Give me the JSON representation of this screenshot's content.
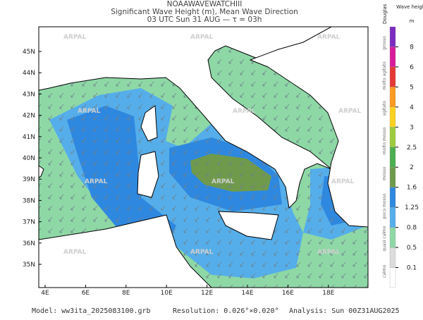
{
  "header": {
    "title": "NOAAWAVEWATCHIII",
    "subtitle": "Significant Wave Height (m), Mean Wave Direction",
    "time": "03 UTC Sun 31 AUG  —  τ = 03h"
  },
  "map": {
    "lat_labels": [
      "35N",
      "36N",
      "37N",
      "38N",
      "39N",
      "40N",
      "41N",
      "42N",
      "43N",
      "44N",
      "45N"
    ],
    "lon_labels": [
      "4E",
      "6E",
      "8E",
      "10E",
      "12E",
      "14E",
      "16E",
      "18E"
    ],
    "watermark": "ARPAL"
  },
  "colorbar": {
    "title": "Wave height",
    "unit": "m",
    "scale_title": "Douglas",
    "labels": [
      "0.1",
      "0.5",
      "0.8",
      "1.25",
      "1.6",
      "2",
      "2.5",
      "3",
      "4",
      "5",
      "6",
      "8"
    ],
    "colors": [
      "#ffffff",
      "#dcdcdc",
      "#8ed8a6",
      "#55aeea",
      "#2f88df",
      "#6f9a4c",
      "#4caf50",
      "#9ccc3c",
      "#ffd21f",
      "#ff9b1f",
      "#e53935",
      "#d81b9a",
      "#7b2cbf"
    ],
    "douglas": [
      "calmo",
      "quasi calmo",
      "poco mosso",
      "mosso",
      "molto mosso",
      "agitato",
      "molto agitato",
      "grosso"
    ]
  },
  "footer": {
    "model": "Model: ww3ita_2025083100.grb",
    "resolution": "Resolution: 0.026°×0.020°",
    "analysis": "Analysis: Sun 00Z31AUG2025"
  }
}
